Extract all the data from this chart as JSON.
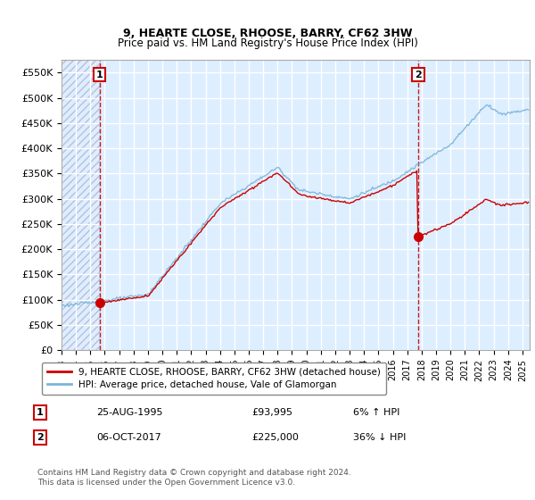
{
  "title": "9, HEARTE CLOSE, RHOOSE, BARRY, CF62 3HW",
  "subtitle": "Price paid vs. HM Land Registry's House Price Index (HPI)",
  "xlim_start": 1993.0,
  "xlim_end": 2025.5,
  "ylim_min": 0,
  "ylim_max": 575000,
  "yticks": [
    0,
    50000,
    100000,
    150000,
    200000,
    250000,
    300000,
    350000,
    400000,
    450000,
    500000,
    550000
  ],
  "ytick_labels": [
    "£0",
    "£50K",
    "£100K",
    "£150K",
    "£200K",
    "£250K",
    "£300K",
    "£350K",
    "£400K",
    "£450K",
    "£500K",
    "£550K"
  ],
  "xticks": [
    1993,
    1994,
    1995,
    1996,
    1997,
    1998,
    1999,
    2000,
    2001,
    2002,
    2003,
    2004,
    2005,
    2006,
    2007,
    2008,
    2009,
    2010,
    2011,
    2012,
    2013,
    2014,
    2015,
    2016,
    2017,
    2018,
    2019,
    2020,
    2021,
    2022,
    2023,
    2024,
    2025
  ],
  "purchase1_year": 1995.646,
  "purchase1_price": 93995,
  "purchase1_label": "1",
  "purchase1_date": "25-AUG-1995",
  "purchase1_amount": "£93,995",
  "purchase1_hpi": "6% ↑ HPI",
  "purchase2_year": 2017.76,
  "purchase2_price": 225000,
  "purchase2_label": "2",
  "purchase2_date": "06-OCT-2017",
  "purchase2_amount": "£225,000",
  "purchase2_hpi": "36% ↓ HPI",
  "hpi_color": "#7ab4d8",
  "property_color": "#cc0000",
  "vline_color": "#cc0000",
  "plot_bg_color": "#ddeeff",
  "grid_color": "#ffffff",
  "legend_label_property": "9, HEARTE CLOSE, RHOOSE, BARRY, CF62 3HW (detached house)",
  "legend_label_hpi": "HPI: Average price, detached house, Vale of Glamorgan",
  "footnote": "Contains HM Land Registry data © Crown copyright and database right 2024.\nThis data is licensed under the Open Government Licence v3.0."
}
